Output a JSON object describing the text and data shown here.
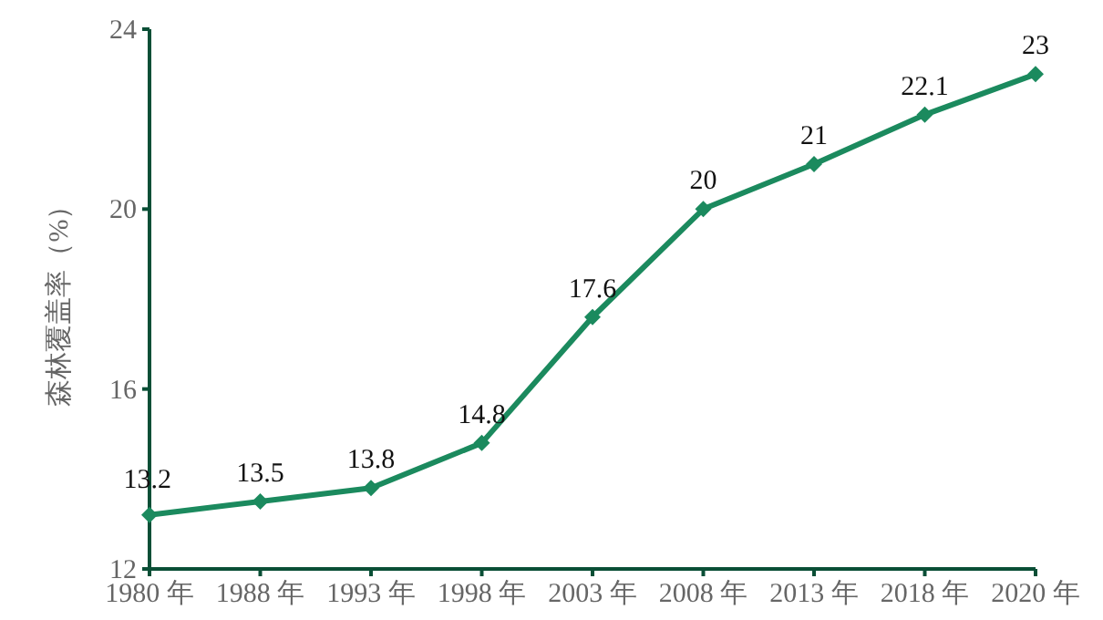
{
  "chart_data": {
    "type": "line",
    "ylabel": "森林覆盖率（%）",
    "categories": [
      "1980 年",
      "1988 年",
      "1993 年",
      "1998 年",
      "2003 年",
      "2008 年",
      "2013 年",
      "2018 年",
      "2020 年"
    ],
    "values": [
      13.2,
      13.5,
      13.8,
      14.8,
      17.6,
      20,
      21,
      22.1,
      23
    ],
    "color": "#1b8a5e",
    "ylim": [
      12,
      24
    ],
    "yticks": [
      12,
      16,
      20,
      24
    ],
    "data_labels": true,
    "marker": "diamond"
  }
}
